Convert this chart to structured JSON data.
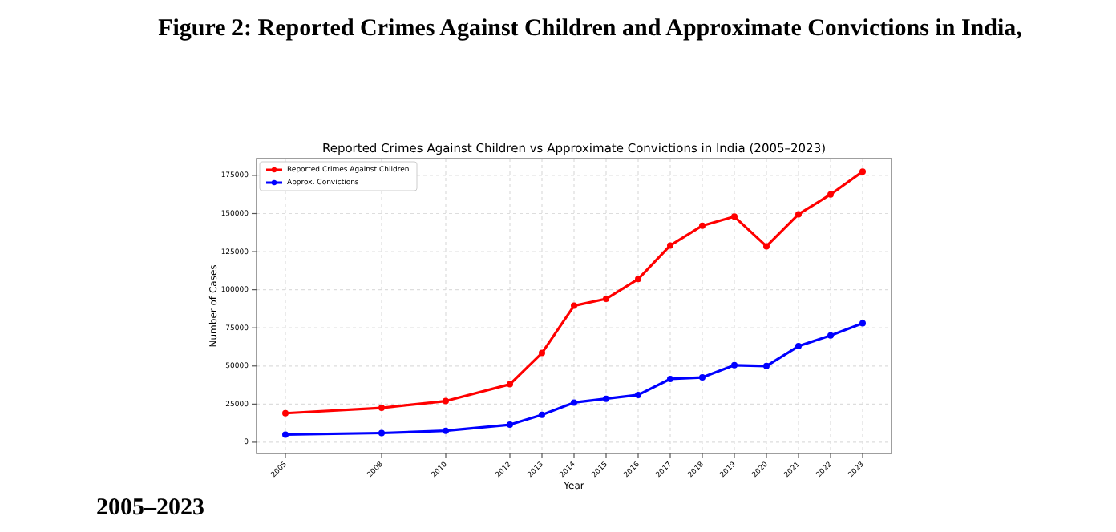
{
  "chart_data": {
    "type": "line",
    "title": "Reported Crimes Against Children vs Approximate Convictions in India (2005–2023)",
    "xlabel": "Year",
    "ylabel": "Number of Cases",
    "annotations": [
      "Figure 2: Reported Crimes Against Children and Approximate Convictions in India,",
      "2005–2023"
    ],
    "x": [
      2005,
      2008,
      2010,
      2012,
      2013,
      2014,
      2015,
      2016,
      2017,
      2018,
      2019,
      2020,
      2021,
      2022,
      2023
    ],
    "series": [
      {
        "name": "Reported Crimes Against Children",
        "color": "#ff0000",
        "values": [
          19000,
          22500,
          27000,
          38000,
          58500,
          89500,
          94000,
          107000,
          129000,
          142000,
          148000,
          128500,
          149500,
          162500,
          177500
        ]
      },
      {
        "name": "Approx. Convictions",
        "color": "#0000ff",
        "values": [
          5000,
          6000,
          7500,
          11500,
          18000,
          26000,
          28500,
          31000,
          41500,
          42500,
          50500,
          50000,
          63000,
          70000,
          78000
        ]
      }
    ],
    "xlim": [
      2004.1,
      2023.9
    ],
    "xticks": [
      2005,
      2008,
      2010,
      2012,
      2013,
      2014,
      2015,
      2016,
      2017,
      2018,
      2019,
      2020,
      2021,
      2022,
      2023
    ],
    "ylim": [
      -7400,
      186000
    ],
    "yticks": [
      0,
      25000,
      50000,
      75000,
      100000,
      125000,
      150000,
      175000
    ],
    "grid": true,
    "legend": "top left",
    "marker": "circle",
    "line_style": "solid"
  }
}
